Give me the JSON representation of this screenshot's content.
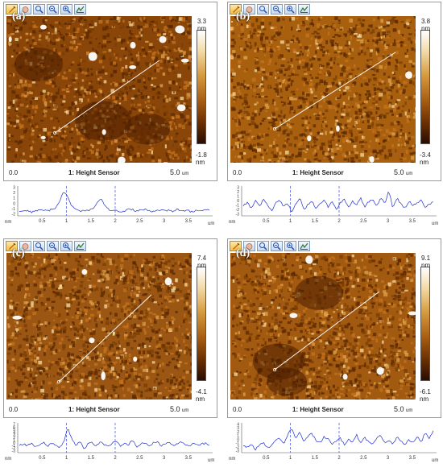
{
  "toolbar_icons": [
    "cursor-tool-icon",
    "hand-tool-icon",
    "zoom-in-icon",
    "zoom-region-icon",
    "zoom-out-icon",
    "profile-tool-icon"
  ],
  "panels": [
    {
      "letter": "(a)",
      "cb_max": "3.3 nm",
      "cb_min": "-1.8 nm",
      "axis_start": "0.0",
      "channel": "1: Height Sensor",
      "axis_end": "5.0",
      "axis_unit": "um",
      "profile": {
        "yticks": [
          "3",
          "2",
          "1",
          "0",
          "-1",
          "-2"
        ],
        "xticks": [
          "0.5",
          "1",
          "1.5",
          "2",
          "2.5",
          "3",
          "3.5"
        ],
        "x_unit_left": "nm",
        "x_unit_right": "um"
      }
    },
    {
      "letter": "(b)",
      "cb_max": "3.8 nm",
      "cb_min": "-3.4 nm",
      "axis_start": "0.0",
      "channel": "1: Height Sensor",
      "axis_end": "5.0",
      "axis_unit": "um",
      "profile": {
        "yticks": [
          "3",
          "2",
          "1",
          "0",
          "-1",
          "-2",
          "-3"
        ],
        "xticks": [
          "0.5",
          "1",
          "1.5",
          "2",
          "2.5",
          "3",
          "3.5"
        ],
        "x_unit_left": "nm",
        "x_unit_right": "um"
      }
    },
    {
      "letter": "(c)",
      "cb_max": "7.4 nm",
      "cb_min": "-4.1 nm",
      "axis_start": "0.0",
      "channel": "1: Height Sensor",
      "axis_end": "5.0",
      "axis_unit": "um",
      "profile": {
        "yticks": [
          "7",
          "6",
          "5",
          "4",
          "3",
          "2",
          "1",
          "0",
          "-1",
          "-2",
          "-3"
        ],
        "xticks": [
          "0.5",
          "1",
          "1.5",
          "2",
          "2.5",
          "3",
          "3.5"
        ],
        "x_unit_left": "nm",
        "x_unit_right": "um"
      }
    },
    {
      "letter": "(d)",
      "cb_max": "9.1 nm",
      "cb_min": "-6.1 nm",
      "axis_start": "0.0",
      "channel": "1: Height Sensor",
      "axis_end": "5.0",
      "axis_unit": "um",
      "profile": {
        "yticks": [
          "4",
          "3",
          "2",
          "1",
          "0",
          "-1",
          "-2",
          "-3"
        ],
        "xticks": [
          "0.5",
          "1",
          "1.5",
          "2",
          "2.5",
          "3",
          "3.5"
        ],
        "x_unit_left": "nm",
        "x_unit_right": "um"
      }
    }
  ],
  "colors": {
    "afm_dark": "#5a2800",
    "afm_mid": "#b8651a",
    "afm_light": "#f5dca0",
    "profile_line": "#1f2fd0",
    "marker_line": "#3a4fe0"
  }
}
